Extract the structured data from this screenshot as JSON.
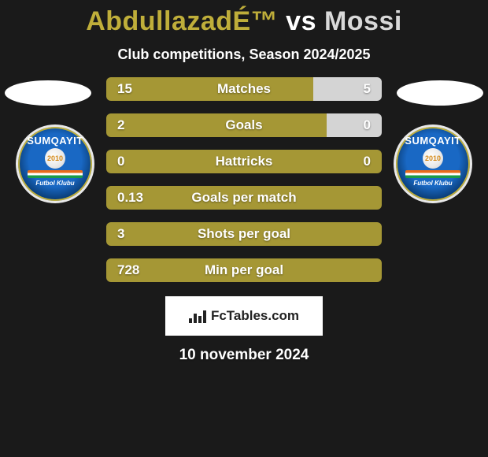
{
  "title_left": "AbdullazadÉ™",
  "title_vs": "vs",
  "title_right": "Mossi",
  "title_color_left": "#bfae3a",
  "title_color_vs": "#ffffff",
  "title_color_right": "#d9d9d9",
  "subtitle": "Club competitions, Season 2024/2025",
  "badge": {
    "top_text": "SUMQAYIT",
    "year": "2010",
    "bottom_text": "Futbol Klubu"
  },
  "colors": {
    "left_bar": "#a59735",
    "right_bar": "#d4d4d4",
    "neutral_bar": "#a59735"
  },
  "bars": [
    {
      "label": "Matches",
      "left": "15",
      "right": "5",
      "left_pct": 75,
      "right_pct": 25
    },
    {
      "label": "Goals",
      "left": "2",
      "right": "0",
      "left_pct": 80,
      "right_pct": 20
    },
    {
      "label": "Hattricks",
      "left": "0",
      "right": "0",
      "left_pct": 100,
      "right_pct": 0
    },
    {
      "label": "Goals per match",
      "left": "0.13",
      "right": "",
      "left_pct": 100,
      "right_pct": 0
    },
    {
      "label": "Shots per goal",
      "left": "3",
      "right": "",
      "left_pct": 100,
      "right_pct": 0
    },
    {
      "label": "Min per goal",
      "left": "728",
      "right": "",
      "left_pct": 100,
      "right_pct": 0
    }
  ],
  "footer_brand": "FcTables.com",
  "date": "10 november 2024"
}
